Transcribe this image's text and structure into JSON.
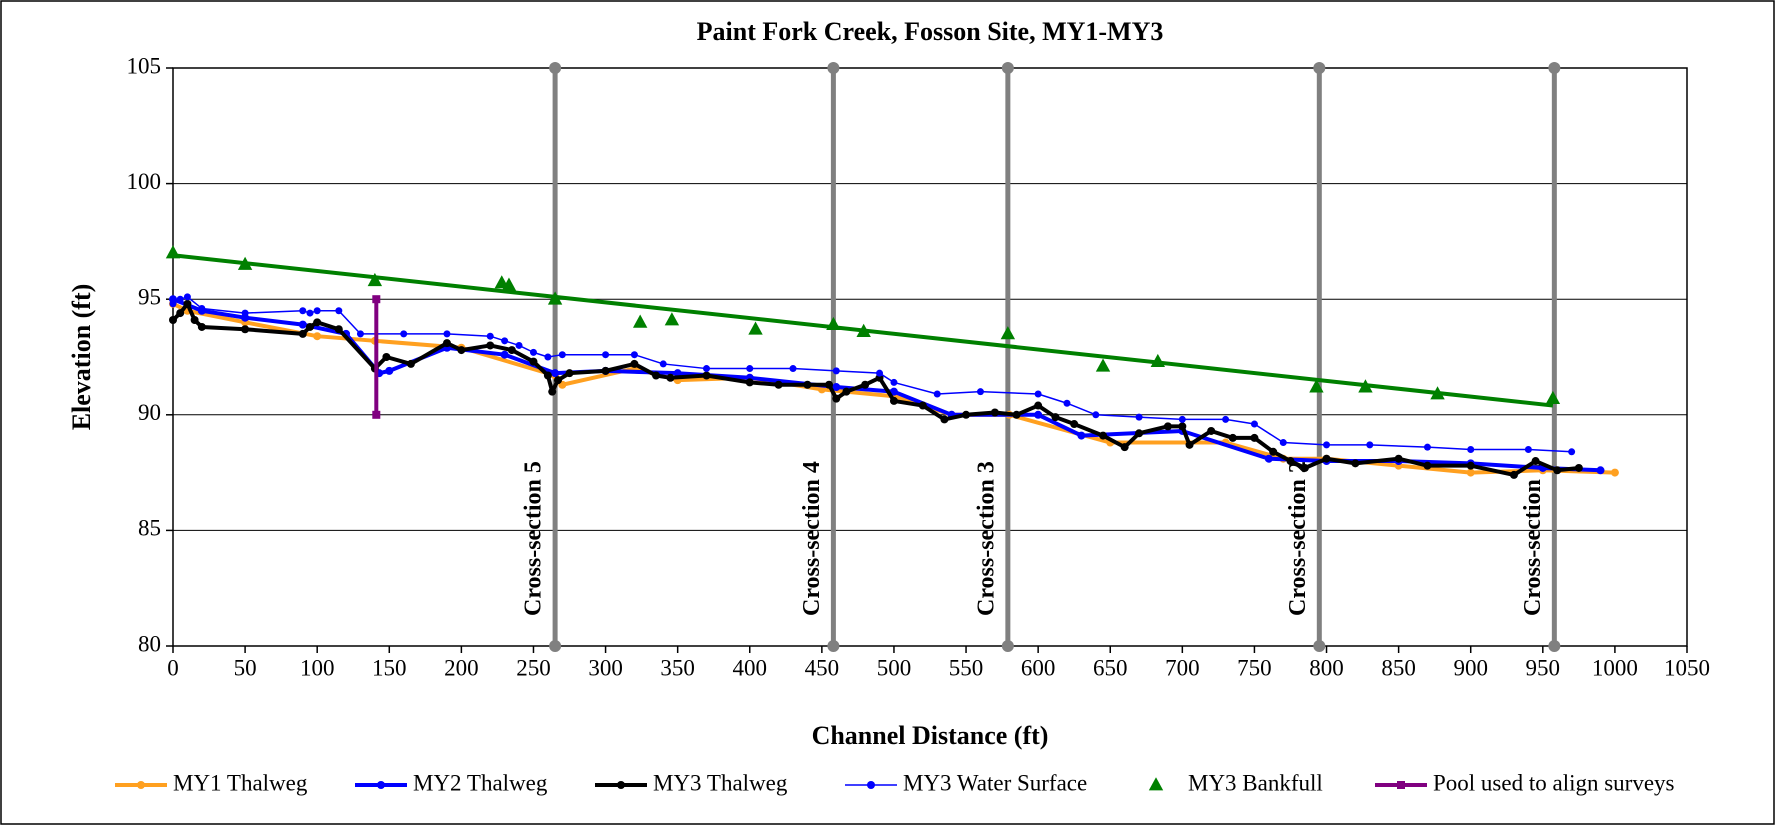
{
  "chart_data": {
    "type": "line",
    "title": "Paint Fork Creek, Fosson Site, MY1-MY3",
    "x_label": "Channel Distance (ft)",
    "y_label": "Elevation (ft)",
    "xlim": [
      0,
      1050
    ],
    "ylim": [
      80,
      105
    ],
    "xticks": [
      0,
      50,
      100,
      150,
      200,
      250,
      300,
      350,
      400,
      450,
      500,
      550,
      600,
      650,
      700,
      750,
      800,
      850,
      900,
      950,
      1000,
      1050
    ],
    "yticks": [
      80,
      85,
      90,
      95,
      100,
      105
    ],
    "grid": true,
    "legend": "bottom",
    "series": [
      {
        "name": "MY1 Thalweg",
        "color": "#ffa020",
        "marker": "circle",
        "mode": "lines+markers",
        "width": 4,
        "x": [
          0,
          10,
          50,
          100,
          140,
          200,
          265,
          270,
          320,
          350,
          400,
          450,
          500,
          540,
          580,
          650,
          730,
          770,
          800,
          850,
          900,
          950,
          1000
        ],
        "values": [
          94.8,
          94.5,
          94.0,
          93.4,
          93.2,
          92.9,
          91.7,
          91.3,
          92.0,
          91.5,
          91.6,
          91.1,
          90.8,
          90.0,
          90.0,
          88.8,
          88.8,
          88.1,
          88.1,
          87.8,
          87.5,
          87.6,
          87.5
        ]
      },
      {
        "name": "MY2 Thalweg",
        "color": "#0000ff",
        "marker": "circle",
        "mode": "lines+markers",
        "width": 4,
        "x": [
          0,
          20,
          50,
          90,
          120,
          143,
          150,
          190,
          230,
          265,
          300,
          350,
          400,
          460,
          500,
          540,
          600,
          630,
          700,
          760,
          800,
          850,
          900,
          950,
          990
        ],
        "values": [
          95.0,
          94.5,
          94.2,
          93.9,
          93.5,
          91.8,
          91.9,
          92.9,
          92.6,
          91.8,
          91.9,
          91.8,
          91.6,
          91.2,
          91.0,
          90.0,
          90.0,
          89.1,
          89.3,
          88.1,
          88.0,
          88.0,
          87.9,
          87.7,
          87.6
        ]
      },
      {
        "name": "MY3 Thalweg",
        "color": "#000000",
        "marker": "circle",
        "mode": "lines+markers",
        "width": 4,
        "x": [
          0,
          5,
          10,
          15,
          20,
          50,
          90,
          95,
          100,
          115,
          140,
          148,
          165,
          190,
          200,
          220,
          235,
          250,
          260,
          263,
          267,
          275,
          300,
          320,
          335,
          345,
          370,
          400,
          420,
          440,
          455,
          460,
          467,
          480,
          490,
          500,
          520,
          535,
          550,
          570,
          585,
          600,
          612,
          625,
          645,
          660,
          670,
          690,
          700,
          705,
          720,
          735,
          750,
          763,
          775,
          785,
          800,
          820,
          850,
          870,
          900,
          930,
          945,
          960,
          975
        ],
        "values": [
          94.1,
          94.4,
          94.8,
          94.1,
          93.8,
          93.7,
          93.5,
          93.8,
          94.0,
          93.7,
          92.0,
          92.5,
          92.2,
          93.1,
          92.8,
          93.0,
          92.8,
          92.3,
          91.7,
          91.0,
          91.5,
          91.8,
          91.9,
          92.2,
          91.7,
          91.6,
          91.7,
          91.4,
          91.3,
          91.3,
          91.3,
          90.7,
          91.0,
          91.3,
          91.6,
          90.6,
          90.4,
          89.8,
          90.0,
          90.1,
          90.0,
          90.4,
          89.9,
          89.6,
          89.1,
          88.6,
          89.2,
          89.5,
          89.5,
          88.7,
          89.3,
          89.0,
          89.0,
          88.4,
          88.0,
          87.7,
          88.1,
          87.9,
          88.1,
          87.8,
          87.8,
          87.4,
          88.0,
          87.6,
          87.7
        ]
      },
      {
        "name": "MY3 Water Surface",
        "color": "#0000ff",
        "marker": "circle",
        "mode": "lines+markers",
        "width": 1.5,
        "x": [
          0,
          5,
          10,
          20,
          50,
          90,
          95,
          100,
          115,
          130,
          160,
          190,
          220,
          230,
          240,
          250,
          260,
          270,
          300,
          320,
          340,
          370,
          400,
          430,
          460,
          490,
          500,
          530,
          560,
          600,
          620,
          640,
          670,
          700,
          730,
          750,
          770,
          800,
          830,
          870,
          900,
          940,
          970
        ],
        "values": [
          94.8,
          95.0,
          95.1,
          94.6,
          94.4,
          94.5,
          94.4,
          94.5,
          94.5,
          93.5,
          93.5,
          93.5,
          93.4,
          93.2,
          93.0,
          92.7,
          92.5,
          92.6,
          92.6,
          92.6,
          92.2,
          92.0,
          92.0,
          92.0,
          91.9,
          91.8,
          91.4,
          90.9,
          91.0,
          90.9,
          90.5,
          90.0,
          89.9,
          89.8,
          89.8,
          89.6,
          88.8,
          88.7,
          88.7,
          88.6,
          88.5,
          88.5,
          88.4
        ]
      },
      {
        "name": "MY3 Bankfull",
        "color": "#008000",
        "marker": "triangle",
        "mode": "markers",
        "width": 0,
        "x": [
          0,
          50,
          140,
          228,
          233,
          265,
          324,
          346,
          404,
          458,
          479,
          579,
          645,
          683,
          793,
          827,
          877,
          957
        ],
        "values": [
          97.0,
          96.5,
          95.8,
          95.7,
          95.6,
          95.0,
          94.0,
          94.1,
          93.7,
          93.9,
          93.6,
          93.5,
          92.1,
          92.3,
          91.2,
          91.2,
          90.9,
          90.7
        ]
      },
      {
        "name": "Pool used to align surveys",
        "color": "#800080",
        "marker": "square",
        "mode": "lines+markers",
        "width": 4,
        "x": [
          141,
          141
        ],
        "values": [
          90,
          95
        ]
      }
    ],
    "trendline": {
      "color": "#008000",
      "x": [
        0,
        957
      ],
      "values": [
        96.9,
        90.4
      ]
    },
    "cross_sections": {
      "color": "#808080",
      "x": [
        265,
        458,
        579,
        795,
        958
      ],
      "labels": [
        "Cross-section 5",
        "Cross-section 4",
        "Cross-section 3",
        "Cross-section 2",
        "Cross-section 1"
      ]
    }
  }
}
